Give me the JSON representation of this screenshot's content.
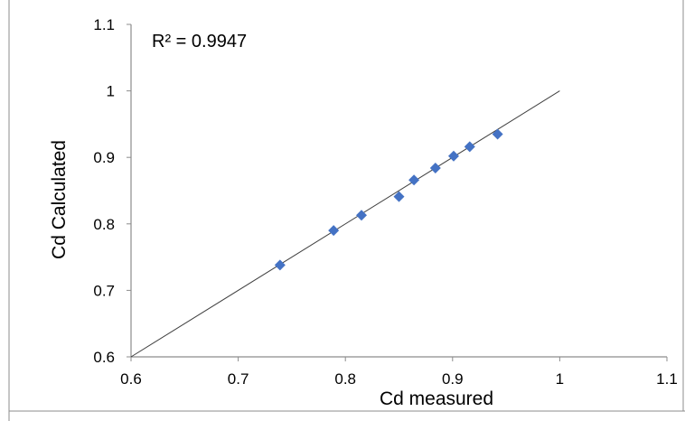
{
  "chart_data": {
    "type": "scatter",
    "title": "",
    "xlabel": "Cd measured",
    "ylabel": "Cd Calculated",
    "xlim": [
      0.6,
      1.1
    ],
    "ylim": [
      0.6,
      1.1
    ],
    "x_ticks": [
      "0.6",
      "0.7",
      "0.8",
      "0.9",
      "1",
      "1.1"
    ],
    "y_ticks": [
      "0.6",
      "0.7",
      "0.8",
      "0.9",
      "1",
      "1.1"
    ],
    "annotation": "R² = 0.9947",
    "grid": false,
    "legend": "none",
    "marker_color": "#4472C4",
    "line_color": "#404040",
    "reference_line": {
      "x": [
        0.6,
        1.0
      ],
      "y": [
        0.6,
        1.0
      ]
    },
    "points": [
      {
        "x": 0.739,
        "y": 0.738
      },
      {
        "x": 0.789,
        "y": 0.79
      },
      {
        "x": 0.815,
        "y": 0.813
      },
      {
        "x": 0.85,
        "y": 0.841
      },
      {
        "x": 0.864,
        "y": 0.866
      },
      {
        "x": 0.884,
        "y": 0.884
      },
      {
        "x": 0.901,
        "y": 0.902
      },
      {
        "x": 0.916,
        "y": 0.916
      },
      {
        "x": 0.942,
        "y": 0.935
      }
    ]
  }
}
